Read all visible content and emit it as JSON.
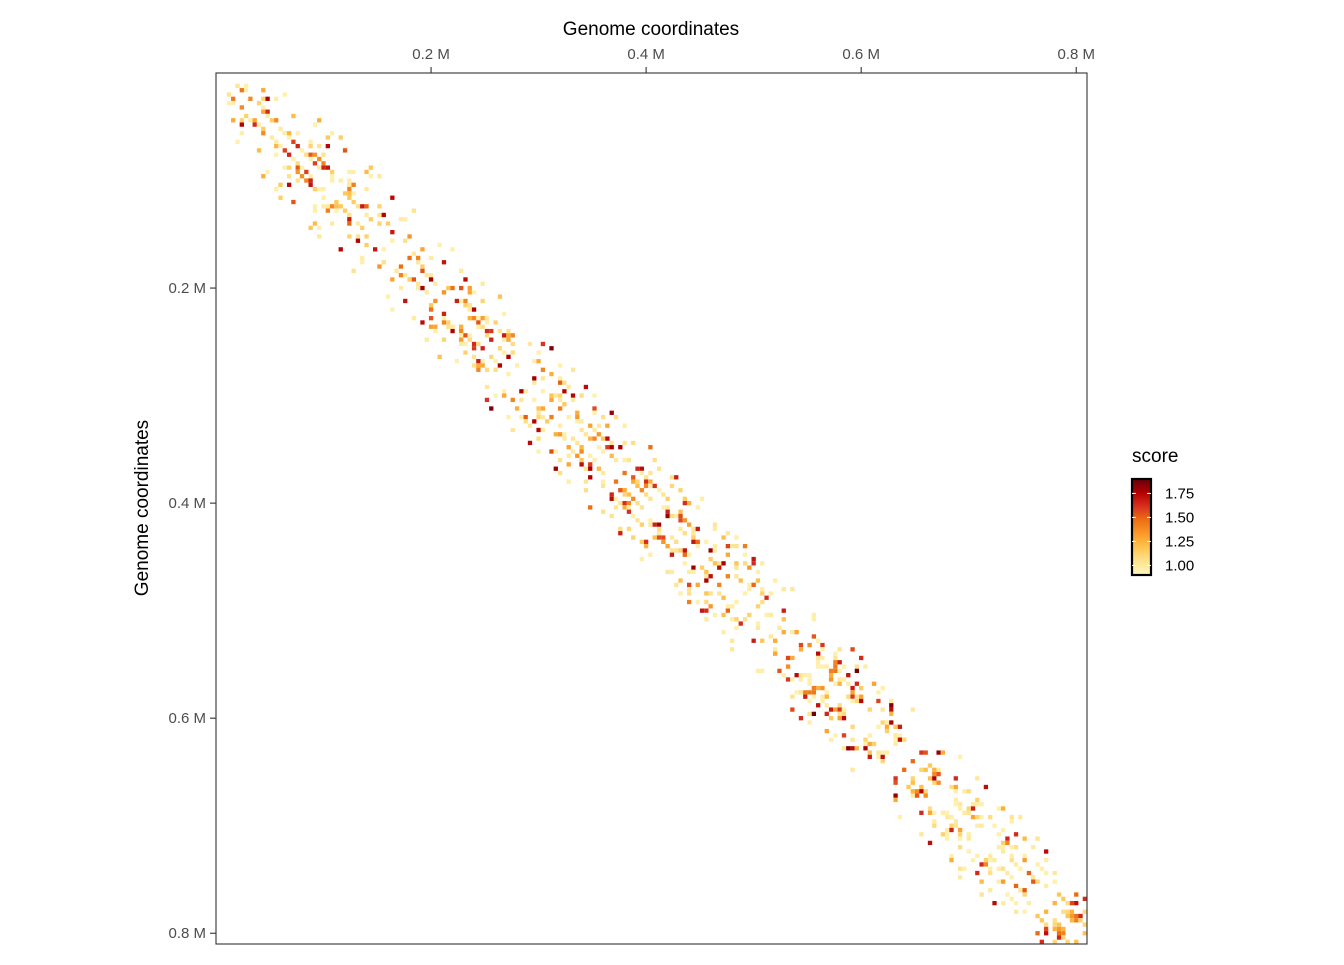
{
  "chart_data": {
    "type": "heatmap",
    "title": "",
    "xlabel": "Genome coordinates",
    "ylabel": "Genome coordinates",
    "x_axis_position": "top",
    "y_axis_direction": "reversed",
    "xlim": [
      0,
      810000
    ],
    "ylim": [
      0,
      810000
    ],
    "x_ticks": [
      {
        "value": 200000,
        "label": "0.2 M"
      },
      {
        "value": 400000,
        "label": "0.4 M"
      },
      {
        "value": 600000,
        "label": "0.6 M"
      },
      {
        "value": 800000,
        "label": "0.8 M"
      }
    ],
    "y_ticks": [
      {
        "value": 200000,
        "label": "0.2 M"
      },
      {
        "value": 400000,
        "label": "0.4 M"
      },
      {
        "value": 600000,
        "label": "0.6 M"
      },
      {
        "value": 800000,
        "label": "0.8 M"
      }
    ],
    "diagonal_band_width": 60000,
    "legend": {
      "title": "score",
      "placement": "right",
      "range": [
        0.9,
        1.9
      ],
      "ticks": [
        {
          "value": 1.75,
          "label": "1.75"
        },
        {
          "value": 1.5,
          "label": "1.50"
        },
        {
          "value": 1.25,
          "label": "1.25"
        },
        {
          "value": 1.0,
          "label": "1.00"
        }
      ],
      "colors": [
        "#FFF7BC",
        "#FEE391",
        "#FEC44F",
        "#FB9A29",
        "#EC7014",
        "#D7301F",
        "#B30000",
        "#67000D"
      ]
    },
    "tad_domains": [
      [
        5000,
        30000
      ],
      [
        30000,
        60000
      ],
      [
        60000,
        95000
      ],
      [
        95000,
        130000
      ],
      [
        130000,
        165000
      ],
      [
        165000,
        195000
      ],
      [
        195000,
        235000
      ],
      [
        235000,
        285000
      ],
      [
        285000,
        330000
      ],
      [
        330000,
        370000
      ],
      [
        370000,
        410000
      ],
      [
        410000,
        450000
      ],
      [
        450000,
        490000
      ],
      [
        490000,
        530000
      ],
      [
        530000,
        565000
      ],
      [
        565000,
        600000
      ],
      [
        600000,
        640000
      ],
      [
        640000,
        680000
      ],
      [
        680000,
        720000
      ],
      [
        720000,
        760000
      ],
      [
        760000,
        810000
      ]
    ],
    "grid": false,
    "panel_border": true
  }
}
